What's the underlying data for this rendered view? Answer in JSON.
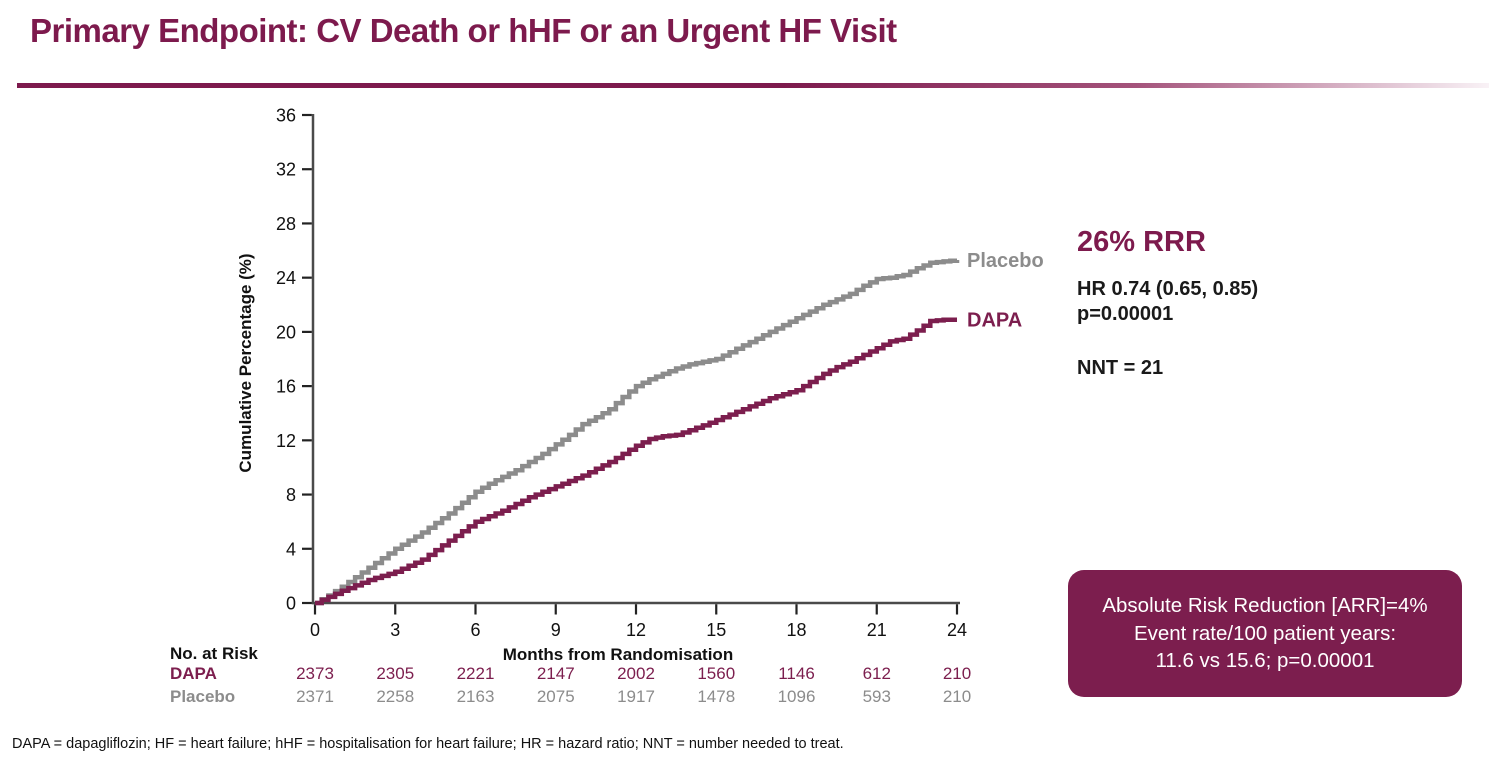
{
  "header": {
    "title": "Primary Endpoint: CV Death or hHF or an Urgent HF Visit",
    "accent_color": "#7D1A4D"
  },
  "chart_data": {
    "type": "line",
    "subtype": "kaplan-meier-step",
    "title": "",
    "xlabel": "Months from Randomisation",
    "ylabel": "Cumulative Percentage (%)",
    "xlim": [
      0,
      24
    ],
    "ylim": [
      0,
      36
    ],
    "xticks": [
      0,
      3,
      6,
      9,
      12,
      15,
      18,
      21,
      24
    ],
    "yticks": [
      0,
      4,
      8,
      12,
      16,
      20,
      24,
      28,
      32,
      36
    ],
    "grid": false,
    "legend_position": "end-of-curve-labels",
    "axis_color": "#4a4a4a",
    "series": [
      {
        "name": "Placebo",
        "color": "#8C8C8C",
        "points": [
          [
            0,
            0
          ],
          [
            0.5,
            0.55
          ],
          [
            1,
            1.2
          ],
          [
            1.5,
            1.9
          ],
          [
            2,
            2.6
          ],
          [
            2.5,
            3.3
          ],
          [
            3,
            4
          ],
          [
            3.5,
            4.6
          ],
          [
            4,
            5.2
          ],
          [
            4.5,
            5.9
          ],
          [
            5,
            6.6
          ],
          [
            5.5,
            7.4
          ],
          [
            6,
            8.2
          ],
          [
            6.5,
            8.8
          ],
          [
            7,
            9.3
          ],
          [
            7.5,
            9.8
          ],
          [
            8,
            10.4
          ],
          [
            8.5,
            11
          ],
          [
            9,
            11.7
          ],
          [
            9.5,
            12.4
          ],
          [
            10,
            13.2
          ],
          [
            10.5,
            13.7
          ],
          [
            11,
            14.3
          ],
          [
            11.5,
            15.2
          ],
          [
            12,
            16
          ],
          [
            12.5,
            16.5
          ],
          [
            13,
            16.9
          ],
          [
            13.5,
            17.3
          ],
          [
            14,
            17.6
          ],
          [
            14.5,
            17.8
          ],
          [
            15,
            18
          ],
          [
            15.5,
            18.5
          ],
          [
            16,
            19
          ],
          [
            16.5,
            19.5
          ],
          [
            17,
            20
          ],
          [
            17.5,
            20.5
          ],
          [
            18,
            21
          ],
          [
            18.5,
            21.5
          ],
          [
            19,
            22
          ],
          [
            19.5,
            22.4
          ],
          [
            20,
            22.8
          ],
          [
            20.5,
            23.4
          ],
          [
            21,
            23.9
          ],
          [
            21.5,
            24
          ],
          [
            22,
            24.2
          ],
          [
            22.5,
            24.7
          ],
          [
            23,
            25.1
          ],
          [
            23.5,
            25.2
          ],
          [
            24,
            25.3
          ]
        ]
      },
      {
        "name": "DAPA",
        "color": "#7C1E4E",
        "points": [
          [
            0,
            0
          ],
          [
            0.5,
            0.45
          ],
          [
            1,
            0.9
          ],
          [
            1.5,
            1.3
          ],
          [
            2,
            1.7
          ],
          [
            2.5,
            2
          ],
          [
            3,
            2.3
          ],
          [
            3.5,
            2.75
          ],
          [
            4,
            3.2
          ],
          [
            4.5,
            3.9
          ],
          [
            5,
            4.6
          ],
          [
            5.5,
            5.3
          ],
          [
            6,
            6
          ],
          [
            6.5,
            6.4
          ],
          [
            7,
            6.8
          ],
          [
            7.5,
            7.3
          ],
          [
            8,
            7.8
          ],
          [
            8.5,
            8.2
          ],
          [
            9,
            8.6
          ],
          [
            9.5,
            9
          ],
          [
            10,
            9.4
          ],
          [
            10.5,
            9.9
          ],
          [
            11,
            10.4
          ],
          [
            11.5,
            11
          ],
          [
            12,
            11.6
          ],
          [
            12.5,
            12.1
          ],
          [
            13,
            12.3
          ],
          [
            13.5,
            12.4
          ],
          [
            14,
            12.75
          ],
          [
            14.5,
            13.1
          ],
          [
            15,
            13.5
          ],
          [
            15.5,
            13.9
          ],
          [
            16,
            14.3
          ],
          [
            16.5,
            14.7
          ],
          [
            17,
            15.1
          ],
          [
            17.5,
            15.4
          ],
          [
            18,
            15.7
          ],
          [
            18.5,
            16.3
          ],
          [
            19,
            16.9
          ],
          [
            19.5,
            17.4
          ],
          [
            20,
            17.8
          ],
          [
            20.5,
            18.3
          ],
          [
            21,
            18.8
          ],
          [
            21.5,
            19.3
          ],
          [
            22,
            19.5
          ],
          [
            22.5,
            20.1
          ],
          [
            23,
            20.8
          ],
          [
            23.5,
            20.9
          ],
          [
            24,
            20.9
          ]
        ]
      }
    ],
    "at_risk": {
      "header": "No. at Risk",
      "months": [
        0,
        3,
        6,
        9,
        12,
        15,
        18,
        21,
        24
      ],
      "rows": [
        {
          "label": "DAPA",
          "color": "#7C1E4E",
          "values": [
            2373,
            2305,
            2221,
            2147,
            2002,
            1560,
            1146,
            612,
            210
          ]
        },
        {
          "label": "Placebo",
          "color": "#8C8C8C",
          "values": [
            2371,
            2258,
            2163,
            2075,
            1917,
            1478,
            1096,
            593,
            210
          ]
        }
      ]
    }
  },
  "stats": {
    "rrr": "26% RRR",
    "hr": "HR 0.74 (0.65, 0.85)",
    "p": "p=0.00001",
    "nnt": "NNT = 21"
  },
  "arr_box": {
    "bg_color": "#7C1E4E",
    "lines": [
      "Absolute Risk Reduction [ARR]=4%",
      "Event rate/100 patient years:",
      "11.6 vs 15.6; p=0.00001"
    ]
  },
  "footnote": "DAPA = dapagliflozin; HF = heart failure; hHF = hospitalisation for heart failure; HR = hazard ratio; NNT = number needed to treat."
}
